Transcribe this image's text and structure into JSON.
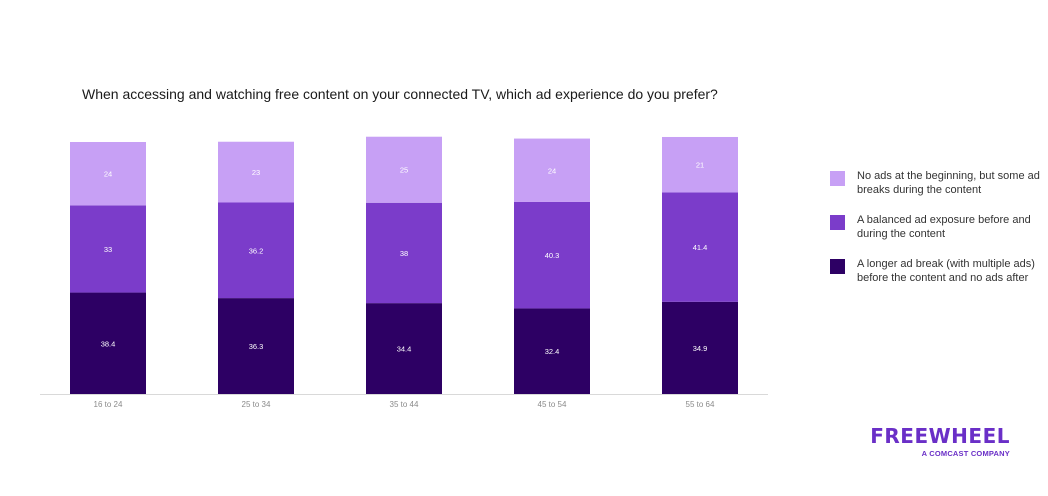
{
  "chart_data": {
    "type": "bar",
    "stacked": true,
    "title": "When accessing and watching free content on your connected TV, which ad experience do you prefer?",
    "categories": [
      "16 to 24",
      "25 to 34",
      "35 to 44",
      "45 to 54",
      "55 to 64"
    ],
    "series": [
      {
        "name": "A longer ad break (with multiple ads) before the content and no ads after",
        "color": "#2d0064",
        "values": [
          38.4,
          36.3,
          34.4,
          32.4,
          34.9
        ],
        "labels": [
          "38.4",
          "36.3",
          "34.4",
          "32.4",
          "34.9"
        ]
      },
      {
        "name": "A balanced ad exposure before and during the content",
        "color": "#7b3cca",
        "values": [
          33,
          36.2,
          38,
          40.3,
          41.4
        ],
        "labels": [
          "33",
          "36.2",
          "38",
          "40.3",
          "41.4"
        ]
      },
      {
        "name": "No ads at the beginning, but some ad breaks during the content",
        "color": "#c7a0f5",
        "values": [
          24,
          23,
          25,
          24,
          21
        ],
        "labels": [
          "24",
          "23",
          "25",
          "24",
          "21"
        ]
      }
    ],
    "ylim": [
      0,
      95.4
    ],
    "grid": false,
    "legend_position": "right"
  },
  "legend": [
    {
      "label": "No ads at the beginning, but some ad breaks during the content",
      "color": "#c7a0f5"
    },
    {
      "label": "A balanced ad exposure before and during the content",
      "color": "#7b3cca"
    },
    {
      "label": "A longer ad break (with multiple ads) before the content and no ads after",
      "color": "#2d0064"
    }
  ],
  "brand": {
    "name": "FREEWHEEL",
    "tagline": "A COMCAST COMPANY",
    "color": "#6a2fc7"
  }
}
